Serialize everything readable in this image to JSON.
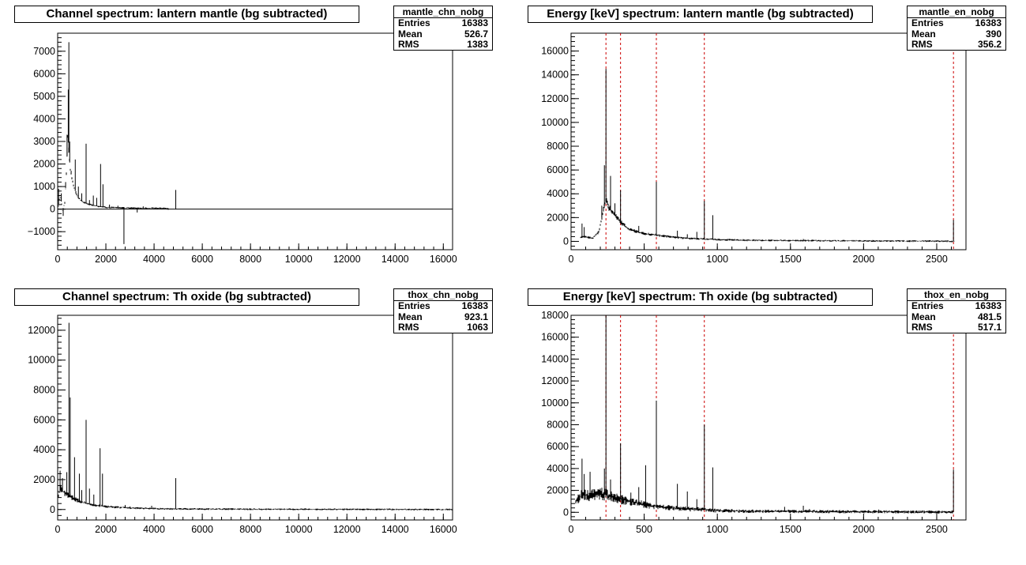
{
  "chart_data": [
    {
      "type": "line",
      "title": "Channel spectrum: lantern mantle (bg subtracted)",
      "xlim": [
        0,
        16384
      ],
      "ylim": [
        -1800,
        7800
      ],
      "xticks": [
        0,
        2000,
        4000,
        6000,
        8000,
        10000,
        12000,
        14000,
        16000
      ],
      "yticks": [
        -1000,
        0,
        1000,
        2000,
        3000,
        4000,
        5000,
        6000,
        7000
      ],
      "xtick_labels": [
        "0",
        "2000",
        "4000",
        "6000",
        "8000",
        "10000",
        "12000",
        "14000",
        "16000"
      ],
      "ytick_labels": [
        "−1000",
        "0",
        "1000",
        "2000",
        "3000",
        "4000",
        "5000",
        "6000",
        "7000"
      ],
      "zero_line": true,
      "stats": {
        "name": "mantle_chn_nobg",
        "rows": [
          {
            "label": "Entries",
            "value": "16383"
          },
          {
            "label": "Mean",
            "value": "526.7"
          },
          {
            "label": "RMS",
            "value": "1383"
          }
        ]
      },
      "reference_lines_x": [],
      "continuum": {
        "x": [
          0,
          60,
          120,
          200,
          300,
          380,
          420,
          460,
          520,
          600,
          700,
          800,
          1000,
          1200,
          1500,
          2000,
          2500,
          3000,
          3500,
          4000,
          4500,
          4600
        ],
        "y": [
          -200,
          400,
          600,
          -100,
          300,
          2000,
          3300,
          2600,
          1800,
          1300,
          900,
          600,
          350,
          250,
          150,
          80,
          60,
          50,
          40,
          40,
          30,
          0
        ]
      },
      "noise_amp": 120,
      "noise_range": [
        0,
        4600
      ],
      "peaks": [
        {
          "x": 40,
          "y": 900
        },
        {
          "x": 150,
          "y": 700
        },
        {
          "x": 230,
          "y": -300
        },
        {
          "x": 330,
          "y": 1200
        },
        {
          "x": 390,
          "y": 3300
        },
        {
          "x": 440,
          "y": 5300
        },
        {
          "x": 465,
          "y": 7400
        },
        {
          "x": 500,
          "y": 3000
        },
        {
          "x": 560,
          "y": 1700
        },
        {
          "x": 730,
          "y": 2200
        },
        {
          "x": 860,
          "y": 1000
        },
        {
          "x": 1000,
          "y": 700
        },
        {
          "x": 1180,
          "y": 2900
        },
        {
          "x": 1320,
          "y": 400
        },
        {
          "x": 1480,
          "y": 600
        },
        {
          "x": 1620,
          "y": 500
        },
        {
          "x": 1780,
          "y": 2000
        },
        {
          "x": 1880,
          "y": 1100
        },
        {
          "x": 2150,
          "y": 200
        },
        {
          "x": 2500,
          "y": 150
        },
        {
          "x": 2750,
          "y": -1550
        },
        {
          "x": 3300,
          "y": -150
        },
        {
          "x": 3550,
          "y": 120
        },
        {
          "x": 4900,
          "y": 850
        }
      ]
    },
    {
      "type": "line",
      "title": "Energy [keV] spectrum: lantern mantle (bg subtracted)",
      "xlim": [
        0,
        2700
      ],
      "ylim": [
        -700,
        17500
      ],
      "xticks": [
        0,
        500,
        1000,
        1500,
        2000,
        2500
      ],
      "yticks": [
        0,
        2000,
        4000,
        6000,
        8000,
        10000,
        12000,
        14000,
        16000
      ],
      "xtick_labels": [
        "0",
        "500",
        "1000",
        "1500",
        "2000",
        "2500"
      ],
      "ytick_labels": [
        "0",
        "2000",
        "4000",
        "6000",
        "8000",
        "10000",
        "12000",
        "14000",
        "16000"
      ],
      "zero_line": false,
      "stats": {
        "name": "mantle_en_nobg",
        "rows": [
          {
            "label": "Entries",
            "value": "16383"
          },
          {
            "label": "Mean",
            "value": "390"
          },
          {
            "label": "RMS",
            "value": "356.2"
          }
        ]
      },
      "reference_lines_x": [
        238.6,
        338.3,
        583.2,
        911.2,
        2614.5
      ],
      "continuum": {
        "x": [
          0,
          80,
          150,
          190,
          220,
          240,
          260,
          300,
          350,
          400,
          500,
          600,
          700,
          800,
          1000,
          1200,
          1500,
          2000,
          2500,
          2620,
          2640,
          2700
        ],
        "y": [
          0,
          400,
          300,
          800,
          2600,
          3500,
          2800,
          2200,
          1500,
          1000,
          650,
          500,
          350,
          250,
          150,
          100,
          70,
          40,
          20,
          0,
          0,
          0
        ]
      },
      "noise_amp": 250,
      "noise_range": [
        60,
        2620
      ],
      "peaks": [
        {
          "x": 75,
          "y": 1500
        },
        {
          "x": 90,
          "y": 1200
        },
        {
          "x": 210,
          "y": 3000
        },
        {
          "x": 228,
          "y": 6400
        },
        {
          "x": 238.6,
          "y": 14500
        },
        {
          "x": 270,
          "y": 5500
        },
        {
          "x": 300,
          "y": 3200
        },
        {
          "x": 338.3,
          "y": 4300
        },
        {
          "x": 409,
          "y": 1100
        },
        {
          "x": 463,
          "y": 1300
        },
        {
          "x": 583.2,
          "y": 5000
        },
        {
          "x": 727,
          "y": 900
        },
        {
          "x": 795,
          "y": 600
        },
        {
          "x": 860,
          "y": 800
        },
        {
          "x": 911.2,
          "y": 3400
        },
        {
          "x": 969,
          "y": 2200
        },
        {
          "x": 1588,
          "y": 200
        },
        {
          "x": 2614.5,
          "y": 1800
        }
      ]
    },
    {
      "type": "line",
      "title": "Channel spectrum: Th oxide (bg subtracted)",
      "xlim": [
        0,
        16384
      ],
      "ylim": [
        -700,
        13000
      ],
      "xticks": [
        0,
        2000,
        4000,
        6000,
        8000,
        10000,
        12000,
        14000,
        16000
      ],
      "yticks": [
        0,
        2000,
        4000,
        6000,
        8000,
        10000,
        12000
      ],
      "xtick_labels": [
        "0",
        "2000",
        "4000",
        "6000",
        "8000",
        "10000",
        "12000",
        "14000",
        "16000"
      ],
      "ytick_labels": [
        "0",
        "2000",
        "4000",
        "6000",
        "8000",
        "10000",
        "12000"
      ],
      "zero_line": false,
      "stats": {
        "name": "thox_chn_nobg",
        "rows": [
          {
            "label": "Entries",
            "value": "16383"
          },
          {
            "label": "Mean",
            "value": "923.1"
          },
          {
            "label": "RMS",
            "value": "1063"
          }
        ]
      },
      "reference_lines_x": [],
      "continuum": {
        "x": [
          0,
          100,
          200,
          300,
          400,
          500,
          700,
          1000,
          1500,
          2000,
          2500,
          3000,
          4000,
          5000,
          8000,
          12000,
          16384
        ],
        "y": [
          600,
          1500,
          1200,
          1100,
          1000,
          900,
          700,
          500,
          300,
          200,
          150,
          100,
          60,
          40,
          20,
          10,
          0
        ]
      },
      "noise_amp": 200,
      "noise_range": [
        0,
        16384
      ],
      "peaks": [
        {
          "x": 100,
          "y": 2600
        },
        {
          "x": 200,
          "y": 2100
        },
        {
          "x": 380,
          "y": 2500
        },
        {
          "x": 470,
          "y": 12500
        },
        {
          "x": 520,
          "y": 7500
        },
        {
          "x": 700,
          "y": 3500
        },
        {
          "x": 900,
          "y": 2400
        },
        {
          "x": 1000,
          "y": 1300
        },
        {
          "x": 1180,
          "y": 6000
        },
        {
          "x": 1320,
          "y": 1400
        },
        {
          "x": 1500,
          "y": 1000
        },
        {
          "x": 1760,
          "y": 4100
        },
        {
          "x": 1860,
          "y": 2400
        },
        {
          "x": 2800,
          "y": 300
        },
        {
          "x": 3000,
          "y": 200
        },
        {
          "x": 3900,
          "y": 250
        },
        {
          "x": 4900,
          "y": 2100
        }
      ]
    },
    {
      "type": "line",
      "title": "Energy [keV] spectrum: Th oxide (bg subtracted)",
      "xlim": [
        0,
        2700
      ],
      "ylim": [
        -700,
        18000
      ],
      "xticks": [
        0,
        500,
        1000,
        1500,
        2000,
        2500
      ],
      "yticks": [
        0,
        2000,
        4000,
        6000,
        8000,
        10000,
        12000,
        14000,
        16000,
        18000
      ],
      "xtick_labels": [
        "0",
        "500",
        "1000",
        "1500",
        "2000",
        "2500"
      ],
      "ytick_labels": [
        "0",
        "2000",
        "4000",
        "6000",
        "8000",
        "10000",
        "12000",
        "14000",
        "16000",
        "18000"
      ],
      "zero_line": false,
      "stats": {
        "name": "thox_en_nobg",
        "rows": [
          {
            "label": "Entries",
            "value": "16383"
          },
          {
            "label": "Mean",
            "value": "481.5"
          },
          {
            "label": "RMS",
            "value": "517.1"
          }
        ]
      },
      "reference_lines_x": [
        238.6,
        338.3,
        583.2,
        911.2,
        2614.5
      ],
      "continuum": {
        "x": [
          0,
          40,
          80,
          120,
          200,
          240,
          300,
          400,
          500,
          600,
          700,
          800,
          900,
          1000,
          1200,
          1500,
          2000,
          2500,
          2610,
          2700
        ],
        "y": [
          0,
          1200,
          1600,
          1500,
          1700,
          1600,
          1300,
          1000,
          700,
          500,
          400,
          300,
          250,
          150,
          100,
          80,
          50,
          30,
          20,
          0
        ]
      },
      "noise_amp": 450,
      "noise_range": [
        30,
        2610
      ],
      "peaks": [
        {
          "x": 75,
          "y": 4900
        },
        {
          "x": 90,
          "y": 3500
        },
        {
          "x": 130,
          "y": 3700
        },
        {
          "x": 228,
          "y": 4000
        },
        {
          "x": 238.6,
          "y": 18000
        },
        {
          "x": 270,
          "y": 3000
        },
        {
          "x": 338.3,
          "y": 6300
        },
        {
          "x": 409,
          "y": 1800
        },
        {
          "x": 463,
          "y": 2300
        },
        {
          "x": 510,
          "y": 4300
        },
        {
          "x": 583.2,
          "y": 10200
        },
        {
          "x": 727,
          "y": 2600
        },
        {
          "x": 795,
          "y": 1900
        },
        {
          "x": 860,
          "y": 1200
        },
        {
          "x": 911.2,
          "y": 8000
        },
        {
          "x": 969,
          "y": 4100
        },
        {
          "x": 1460,
          "y": 500
        },
        {
          "x": 1588,
          "y": 600
        },
        {
          "x": 1630,
          "y": 300
        },
        {
          "x": 2104,
          "y": 250
        },
        {
          "x": 2614.5,
          "y": 3900
        }
      ]
    }
  ]
}
